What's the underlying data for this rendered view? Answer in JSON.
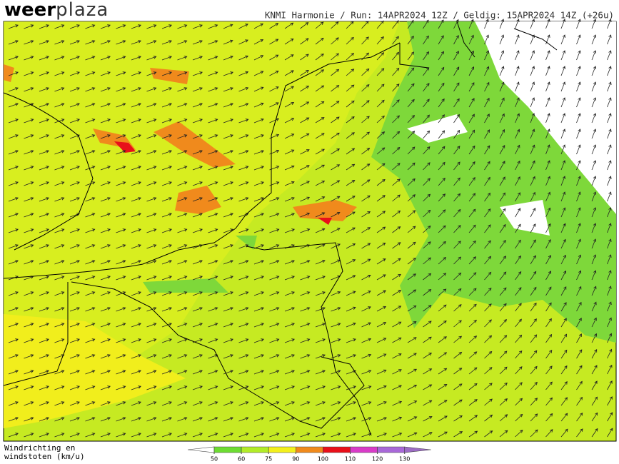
{
  "logo": {
    "part1": "weer",
    "part2": "plaza"
  },
  "header": "KNMI Harmonie / Run: 14APR2024 12Z / Geldig: 15APR2024 14Z (+26u)",
  "legend": {
    "title_line1": "Windrichting en",
    "title_line2": "windstoten (km/u)",
    "ticks": [
      50,
      60,
      75,
      90,
      100,
      110,
      120,
      130
    ],
    "colors": [
      "#ffffff",
      "#6ddc32",
      "#b2ec28",
      "#f3f01c",
      "#f08a1c",
      "#e8101a",
      "#d83cc8",
      "#a868d8",
      "#9c6cc4"
    ]
  }
}
